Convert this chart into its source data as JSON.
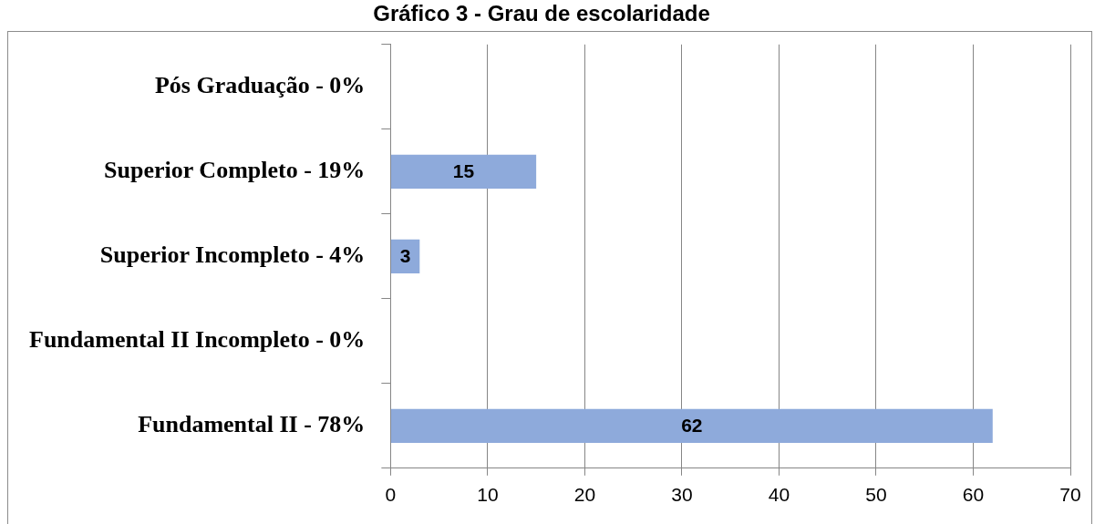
{
  "chart_data": {
    "type": "bar",
    "title": "Gráfico 3 - Grau de escolaridade",
    "orientation": "horizontal",
    "categories": [
      "Pós Graduação - 0%",
      "Superior Completo - 19%",
      "Superior Incompleto - 4%",
      "Fundamental II Incompleto - 0%",
      "Fundamental II - 78%"
    ],
    "values": [
      0,
      15,
      3,
      0,
      62
    ],
    "color": "#8eaadb",
    "value_labels": [
      null,
      "15",
      "3",
      null,
      "62"
    ],
    "xlim": [
      0,
      70
    ],
    "xticks": [
      0,
      10,
      20,
      30,
      40,
      50,
      60,
      70
    ],
    "grid": "x"
  }
}
